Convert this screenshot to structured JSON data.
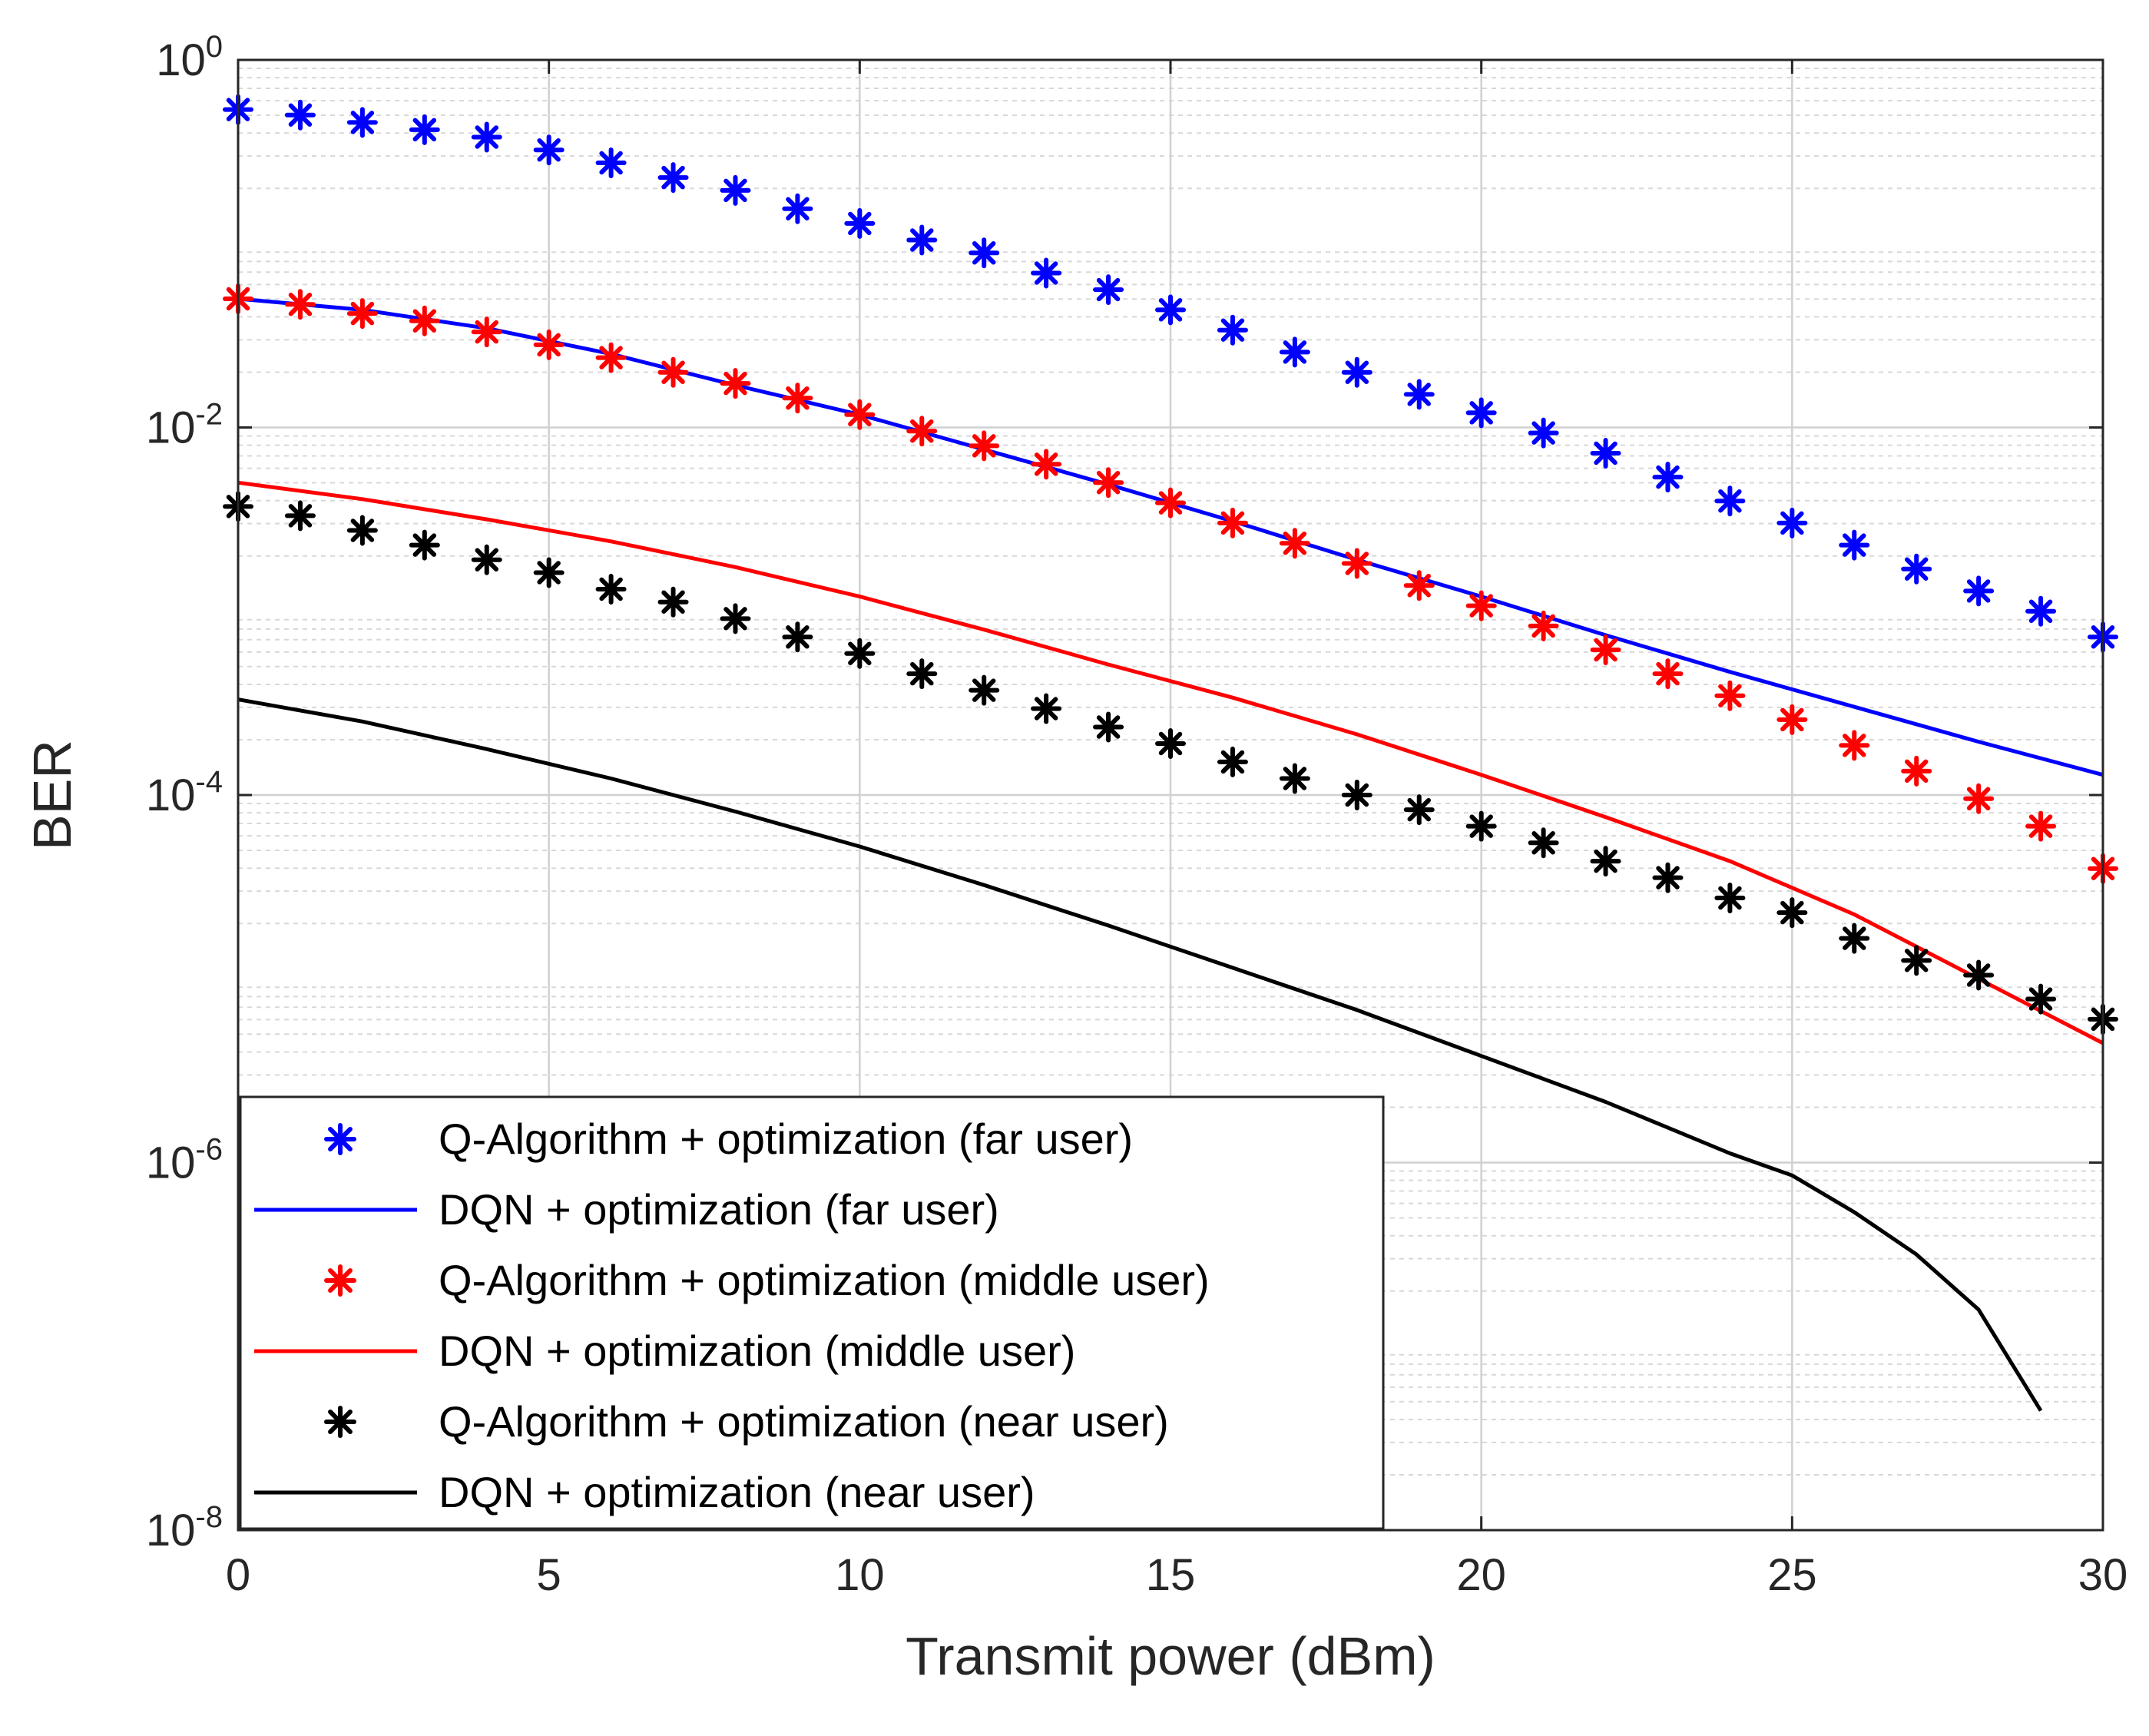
{
  "chart_data": {
    "type": "line",
    "xlabel": "Transmit power (dBm)",
    "ylabel": "BER",
    "xlim": [
      0,
      30
    ],
    "ylim_log10": [
      -8,
      0
    ],
    "xscale": "linear",
    "yscale": "log",
    "grid": true,
    "xticks": [
      0,
      5,
      10,
      15,
      20,
      25,
      30
    ],
    "yticks": [
      {
        "base": "10",
        "exp": "0",
        "value": 0
      },
      {
        "base": "10",
        "exp": "-2",
        "value": -2
      },
      {
        "base": "10",
        "exp": "-4",
        "value": -4
      },
      {
        "base": "10",
        "exp": "-6",
        "value": -6
      },
      {
        "base": "10",
        "exp": "-8",
        "value": -8
      }
    ],
    "legend_position": "bottom-left",
    "series": [
      {
        "name": "Q-Algorithm + optimization (far user)",
        "style": "star",
        "color": "#0000ff",
        "x": [
          0,
          1,
          2,
          3,
          4,
          5,
          6,
          7,
          8,
          9,
          10,
          11,
          12,
          13,
          14,
          15,
          16,
          17,
          18,
          19,
          20,
          21,
          22,
          23,
          24,
          25,
          26,
          27,
          28,
          29,
          30
        ],
        "log10_y": [
          -0.27,
          -0.3,
          -0.34,
          -0.38,
          -0.42,
          -0.49,
          -0.56,
          -0.64,
          -0.71,
          -0.81,
          -0.89,
          -0.98,
          -1.05,
          -1.16,
          -1.25,
          -1.36,
          -1.47,
          -1.59,
          -1.7,
          -1.82,
          -1.92,
          -2.03,
          -2.14,
          -2.27,
          -2.4,
          -2.52,
          -2.64,
          -2.77,
          -2.89,
          -3.0,
          -3.14
        ]
      },
      {
        "name": "DQN + optimization (far user)",
        "style": "line",
        "color": "#0000ff",
        "x": [
          0,
          2,
          4,
          6,
          8,
          10,
          12,
          14,
          16,
          18,
          20,
          22,
          24,
          26,
          28,
          30
        ],
        "log10_y": [
          -1.3,
          -1.36,
          -1.46,
          -1.6,
          -1.77,
          -1.93,
          -2.12,
          -2.31,
          -2.51,
          -2.72,
          -2.92,
          -3.13,
          -3.33,
          -3.52,
          -3.71,
          -3.89
        ]
      },
      {
        "name": "Q-Algorithm + optimization (middle user)",
        "style": "star",
        "color": "#ff0000",
        "x": [
          0,
          1,
          2,
          3,
          4,
          5,
          6,
          7,
          8,
          9,
          10,
          11,
          12,
          13,
          14,
          15,
          16,
          17,
          18,
          19,
          20,
          21,
          22,
          23,
          24,
          25,
          26,
          27,
          28,
          29,
          30
        ],
        "log10_y": [
          -1.3,
          -1.33,
          -1.38,
          -1.42,
          -1.48,
          -1.55,
          -1.62,
          -1.7,
          -1.76,
          -1.84,
          -1.93,
          -2.02,
          -2.1,
          -2.2,
          -2.3,
          -2.41,
          -2.52,
          -2.63,
          -2.74,
          -2.86,
          -2.97,
          -3.08,
          -3.21,
          -3.34,
          -3.46,
          -3.59,
          -3.73,
          -3.87,
          -4.02,
          -4.17,
          -4.4
        ]
      },
      {
        "name": "DQN + optimization  (middle user)",
        "style": "line",
        "color": "#ff0000",
        "x": [
          0,
          2,
          4,
          6,
          8,
          10,
          12,
          14,
          16,
          18,
          20,
          22,
          24,
          26,
          28,
          30
        ],
        "log10_y": [
          -2.3,
          -2.39,
          -2.5,
          -2.62,
          -2.76,
          -2.92,
          -3.1,
          -3.29,
          -3.47,
          -3.67,
          -3.89,
          -4.12,
          -4.36,
          -4.65,
          -5.0,
          -5.35
        ]
      },
      {
        "name": "Q-Algorithm + optimization (near user)",
        "style": "star",
        "color": "#000000",
        "x": [
          0,
          1,
          2,
          3,
          4,
          5,
          6,
          7,
          8,
          9,
          10,
          11,
          12,
          13,
          14,
          15,
          16,
          17,
          18,
          19,
          20,
          21,
          22,
          23,
          24,
          25,
          26,
          27,
          28,
          29,
          30
        ],
        "log10_y": [
          -2.43,
          -2.48,
          -2.56,
          -2.64,
          -2.72,
          -2.79,
          -2.88,
          -2.95,
          -3.04,
          -3.14,
          -3.23,
          -3.34,
          -3.43,
          -3.53,
          -3.63,
          -3.72,
          -3.82,
          -3.91,
          -4.0,
          -4.08,
          -4.17,
          -4.26,
          -4.36,
          -4.45,
          -4.56,
          -4.64,
          -4.78,
          -4.9,
          -4.98,
          -5.11,
          -5.22
        ]
      },
      {
        "name": "DQN + optimization (near user)",
        "style": "line",
        "color": "#000000",
        "x": [
          0,
          2,
          4,
          6,
          8,
          10,
          12,
          14,
          16,
          18,
          20,
          22,
          24,
          25,
          26,
          27,
          28,
          29
        ],
        "log10_y": [
          -3.48,
          -3.6,
          -3.75,
          -3.91,
          -4.09,
          -4.28,
          -4.49,
          -4.71,
          -4.94,
          -5.17,
          -5.42,
          -5.67,
          -5.95,
          -6.07,
          -6.27,
          -6.5,
          -6.8,
          -7.35
        ]
      }
    ]
  }
}
